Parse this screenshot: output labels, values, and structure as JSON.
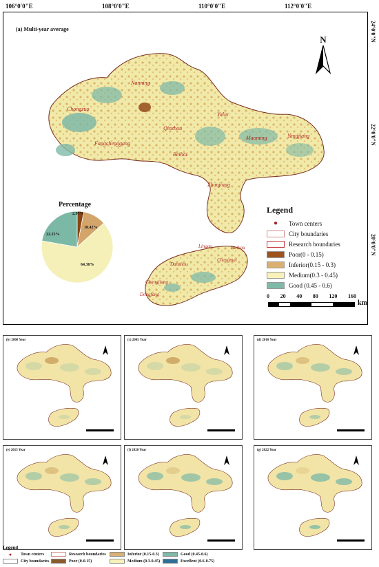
{
  "top_longitudes": [
    "106°0'0\"E",
    "108°0'0\"E",
    "110°0'0\"E",
    "112°0'0\"E"
  ],
  "right_latitudes": [
    "24°0'0\"N",
    "22°0'0\"N",
    "20°0'0\"N"
  ],
  "main_panel": {
    "title": "(a)  Multi-year average",
    "cities": [
      "Nanning",
      "Chongzuo",
      "Fangchenggang",
      "Qinzhou",
      "Beihai",
      "Yulin",
      "Maoming",
      "Yangjiang",
      "Zhanjiang",
      "Lingao",
      "Danzhou",
      "Chengmai",
      "Haikou",
      "Changjiang",
      "Dongfang"
    ],
    "north_label": "N"
  },
  "pie": {
    "title": "Percentage",
    "slices": [
      {
        "label": "Poor",
        "value": 2.97,
        "text": "2.97%",
        "color": "#8b4513"
      },
      {
        "label": "Inferior",
        "value": 10.42,
        "text": "10.42%",
        "color": "#d4a56a"
      },
      {
        "label": "Medium",
        "value": 64.36,
        "text": "64.36%",
        "color": "#f5f0b8"
      },
      {
        "label": "Good",
        "value": 22.25,
        "text": "22.25%",
        "color": "#7cb8a6"
      }
    ]
  },
  "legend": {
    "title": "Legend",
    "items": [
      {
        "label": "Town centers",
        "kind": "dot",
        "color": "#a0282a"
      },
      {
        "label": "City boundaries",
        "kind": "outline",
        "color": "#d48888"
      },
      {
        "label": "Research boundaries",
        "kind": "outline",
        "color": "#c8383a"
      },
      {
        "label": "Poor(0 - 0.15)",
        "kind": "fill",
        "color": "#a0521e"
      },
      {
        "label": "Inferior(0.15 - 0.3)",
        "kind": "fill",
        "color": "#d9b072"
      },
      {
        "label": "Medium(0.3 - 0.45)",
        "kind": "fill",
        "color": "#f6f2b9"
      },
      {
        "label": "Good  (0.45 - 0.6)",
        "kind": "fill",
        "color": "#7fb9a7"
      }
    ],
    "scale_ticks": [
      "0",
      "20",
      "40",
      "80",
      "120",
      "160"
    ],
    "scale_unit": "km"
  },
  "small_panels": [
    {
      "title": "(b)  2000 Year"
    },
    {
      "title": "(c)  2005 Year"
    },
    {
      "title": "(d)  2010 Year"
    },
    {
      "title": "(e)  2015 Year"
    },
    {
      "title": "(f)  2020 Year"
    },
    {
      "title": "(g)  2022 Year"
    }
  ],
  "bottom_legend": {
    "title": "Legend",
    "items": [
      {
        "label": "Town centers",
        "kind": "dot",
        "color": "#a0282a"
      },
      {
        "label": "City boundaries",
        "kind": "outline",
        "color": "#888888"
      },
      {
        "label": "Research boundaries",
        "kind": "outline",
        "color": "#d48888"
      },
      {
        "label": "Poor (0-0.15)",
        "kind": "fill",
        "color": "#8b5a2b"
      },
      {
        "label": "Inferior (0.15-0.3)",
        "kind": "fill",
        "color": "#d9b072"
      },
      {
        "label": "Medium (0.3-0.45)",
        "kind": "fill",
        "color": "#f6f2b9"
      },
      {
        "label": "Good (0.45-0.6)",
        "kind": "fill",
        "color": "#7fb9a7"
      },
      {
        "label": "Excellent (0.6-0.75)",
        "kind": "fill",
        "color": "#2f6f97"
      }
    ]
  }
}
